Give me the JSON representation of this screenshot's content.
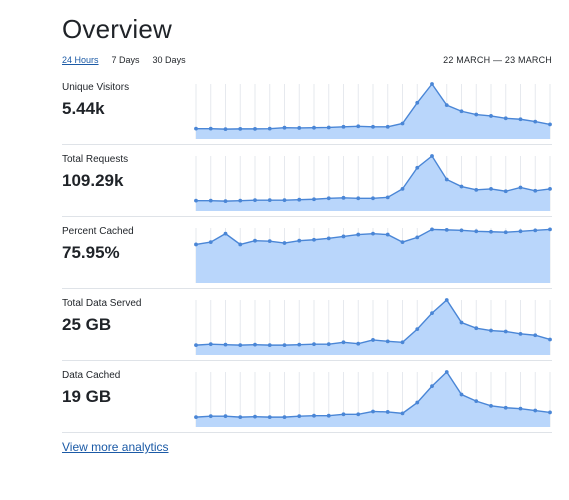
{
  "page": {
    "title": "Overview",
    "tabs": [
      {
        "label": "24 Hours",
        "active": true
      },
      {
        "label": "7 Days",
        "active": false
      },
      {
        "label": "30 Days",
        "active": false
      }
    ],
    "date_range": "22 MARCH — 23 MARCH",
    "more_link": "View more analytics"
  },
  "colors": {
    "line": "#4a86d6",
    "fill": "#b9d6fb",
    "grid": "#e6e9ee",
    "link": "#1b5aa6"
  },
  "chart_data": [
    {
      "type": "area",
      "title": "Unique Visitors",
      "value_label": "5.44k",
      "values": [
        0.05,
        0.05,
        0.04,
        0.045,
        0.045,
        0.05,
        0.07,
        0.065,
        0.07,
        0.075,
        0.09,
        0.1,
        0.09,
        0.09,
        0.16,
        0.6,
        1.0,
        0.55,
        0.42,
        0.35,
        0.32,
        0.27,
        0.25,
        0.2,
        0.14
      ],
      "ylim": [
        0,
        1
      ]
    },
    {
      "type": "area",
      "title": "Total Requests",
      "value_label": "109.29k",
      "values": [
        0.05,
        0.05,
        0.04,
        0.05,
        0.06,
        0.06,
        0.06,
        0.07,
        0.08,
        0.1,
        0.11,
        0.1,
        0.1,
        0.12,
        0.3,
        0.75,
        1.0,
        0.5,
        0.35,
        0.28,
        0.3,
        0.25,
        0.33,
        0.26,
        0.3
      ],
      "ylim": [
        0,
        1
      ]
    },
    {
      "type": "area",
      "title": "Percent Cached",
      "value_label": "75.95%",
      "values": [
        0.65,
        0.7,
        0.88,
        0.65,
        0.73,
        0.72,
        0.68,
        0.73,
        0.75,
        0.78,
        0.82,
        0.86,
        0.88,
        0.86,
        0.7,
        0.8,
        0.97,
        0.96,
        0.95,
        0.93,
        0.92,
        0.91,
        0.93,
        0.95,
        0.97
      ],
      "ylim": [
        0,
        1
      ]
    },
    {
      "type": "area",
      "title": "Total Data Served",
      "value_label": "25 GB",
      "values": [
        0.04,
        0.06,
        0.05,
        0.04,
        0.05,
        0.04,
        0.04,
        0.05,
        0.06,
        0.06,
        0.1,
        0.07,
        0.15,
        0.12,
        0.1,
        0.38,
        0.72,
        1.0,
        0.52,
        0.4,
        0.35,
        0.33,
        0.28,
        0.25,
        0.16
      ],
      "ylim": [
        0,
        1
      ]
    },
    {
      "type": "area",
      "title": "Data Cached",
      "value_label": "19 GB",
      "values": [
        0.04,
        0.06,
        0.06,
        0.04,
        0.05,
        0.04,
        0.04,
        0.06,
        0.07,
        0.07,
        0.1,
        0.1,
        0.16,
        0.15,
        0.12,
        0.35,
        0.7,
        1.0,
        0.52,
        0.38,
        0.28,
        0.24,
        0.22,
        0.18,
        0.14
      ],
      "ylim": [
        0,
        1
      ]
    }
  ]
}
